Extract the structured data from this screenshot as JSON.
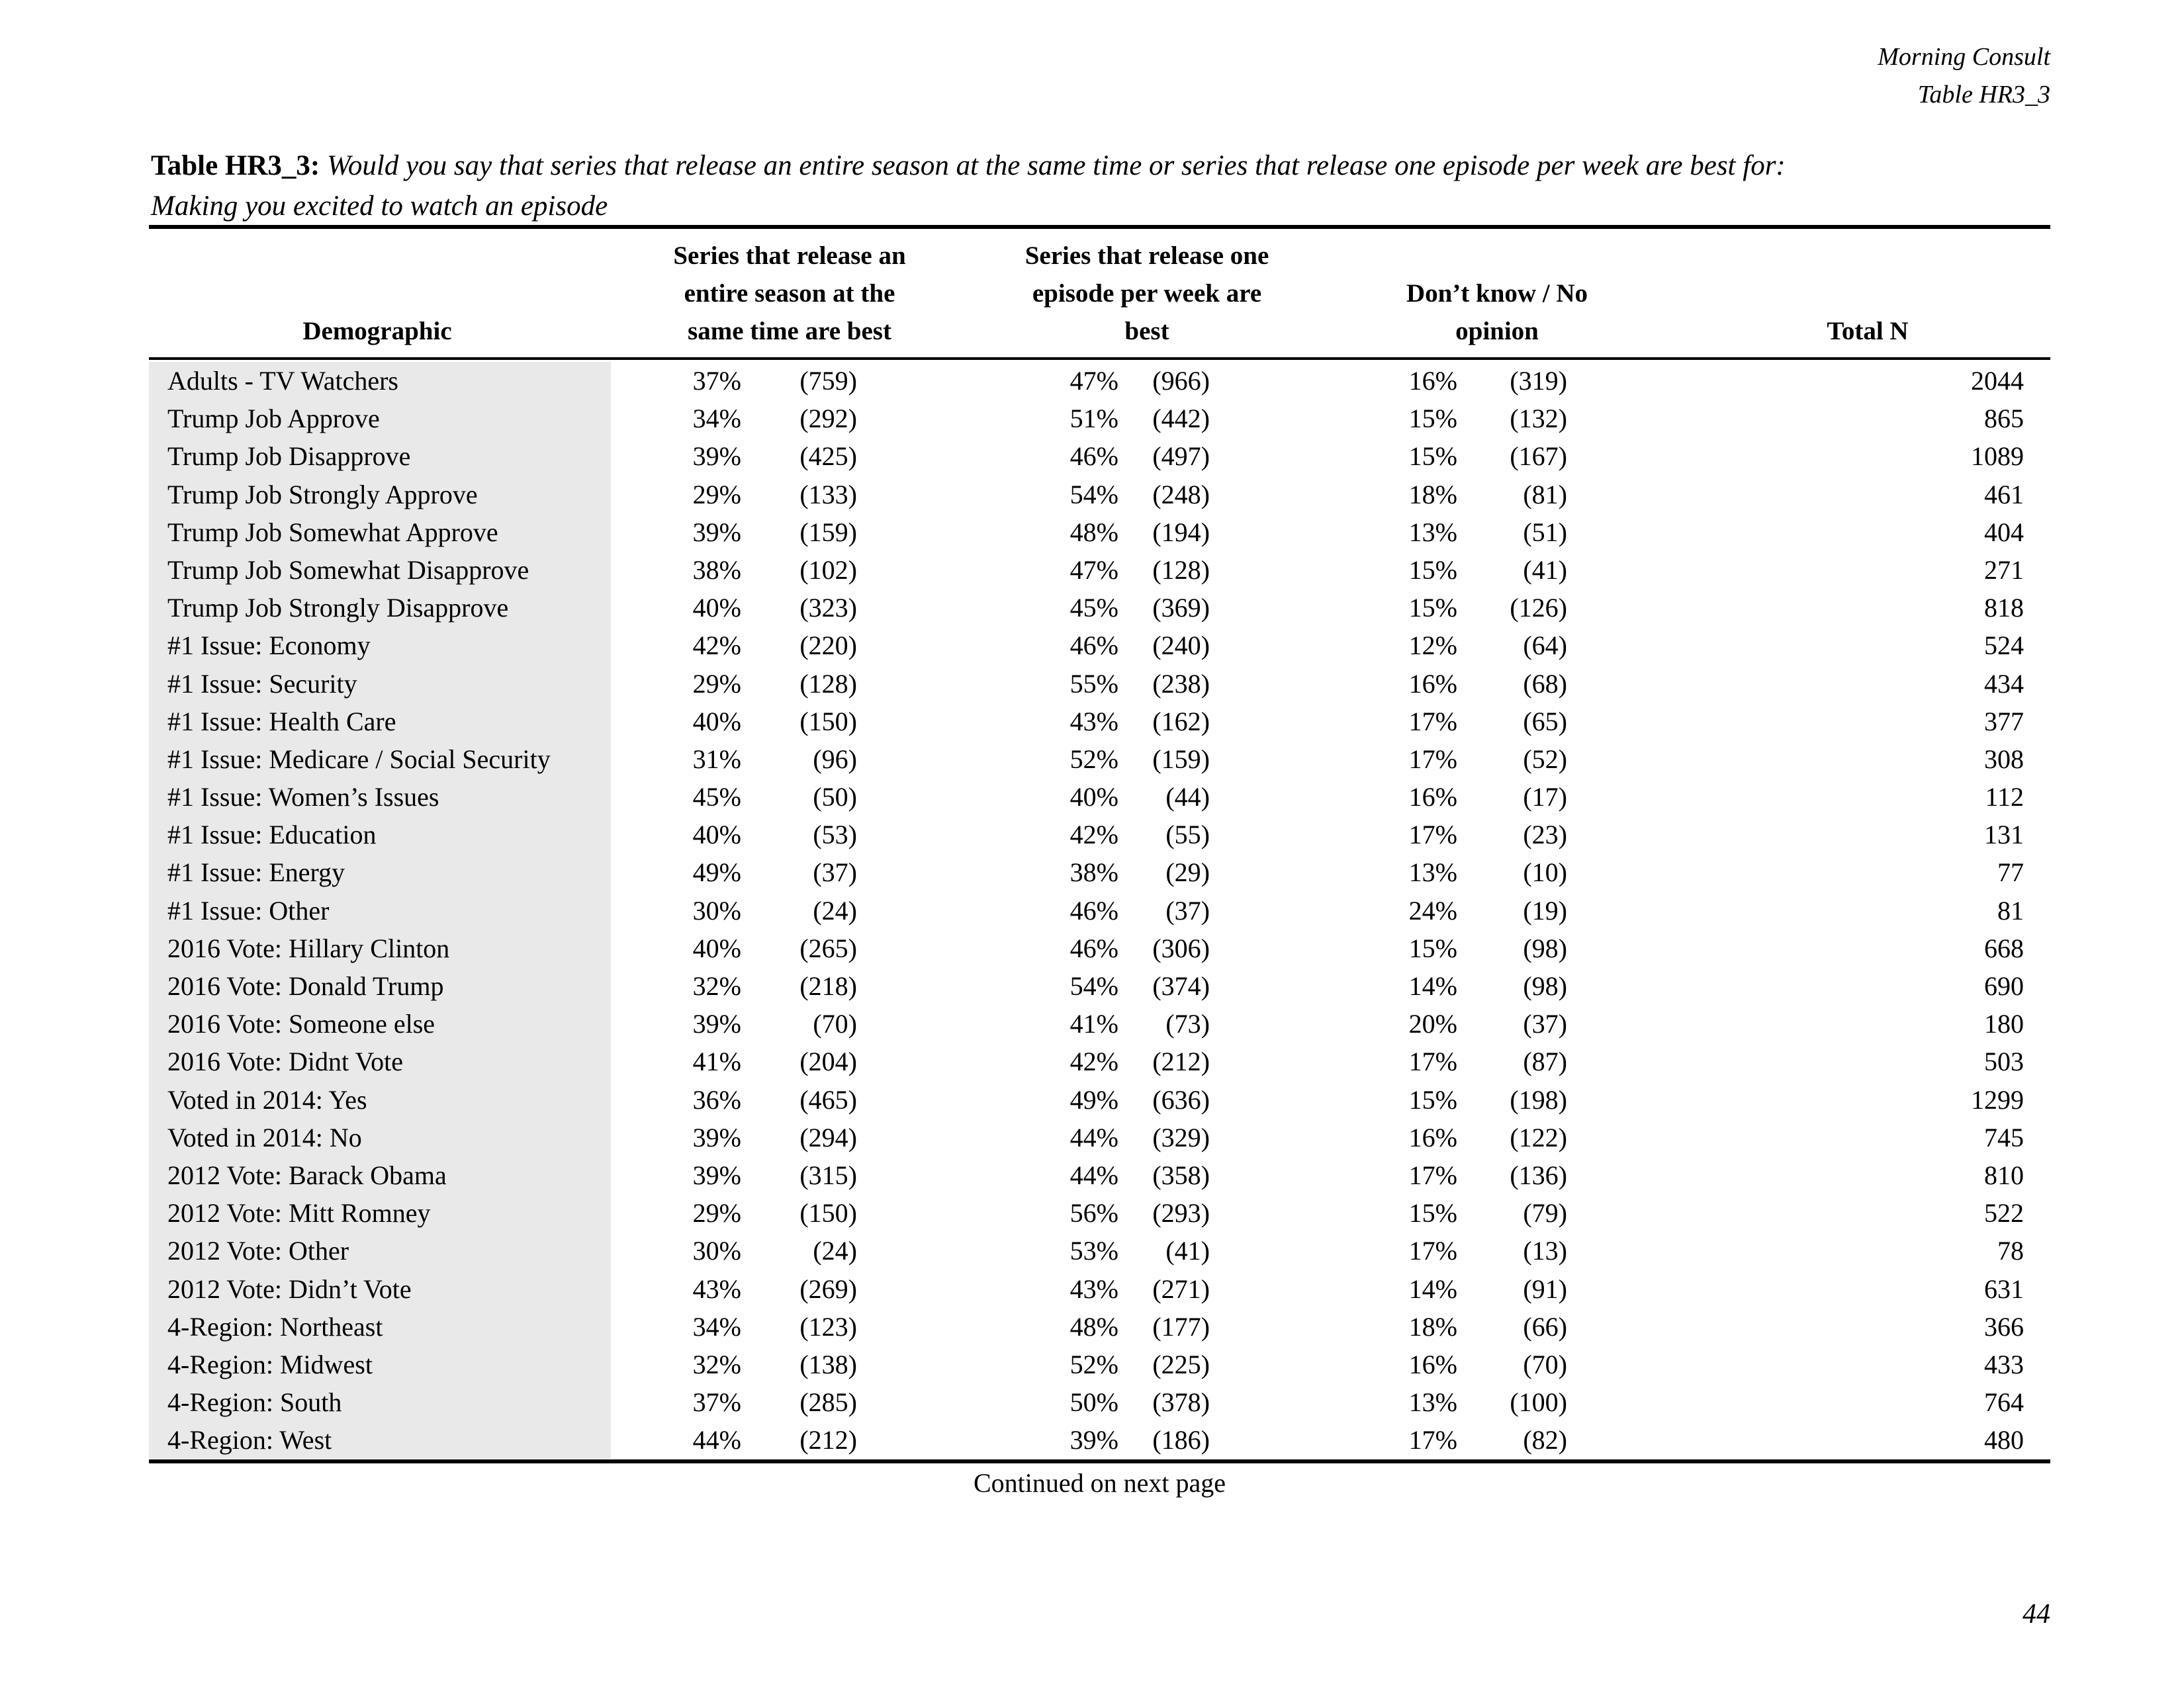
{
  "corner": {
    "line1": "Morning Consult",
    "line2": "Table HR3_3"
  },
  "title": {
    "label": "Table HR3_3:",
    "question_line1": "Would you say that series that release an entire season at the same time or series that release one episode per week are best for:",
    "question_line2": "Making you excited to watch an episode"
  },
  "table": {
    "col_headers": {
      "demographic": "Demographic",
      "group1_lines": [
        "Series that release an",
        "entire season at the",
        "same time are best"
      ],
      "group2_lines": [
        "Series that release one",
        "episode per week are",
        "best"
      ],
      "group3_lines": [
        "Don’t know / No",
        "opinion"
      ],
      "total": "Total N"
    },
    "rows": [
      {
        "label": "Adults - TV Watchers",
        "pct1": "37%",
        "n1": "(759)",
        "pct2": "47%",
        "n2": "(966)",
        "pct3": "16%",
        "n3": "(319)",
        "total": "2044"
      },
      {
        "label": "Trump Job Approve",
        "pct1": "34%",
        "n1": "(292)",
        "pct2": "51%",
        "n2": "(442)",
        "pct3": "15%",
        "n3": "(132)",
        "total": "865"
      },
      {
        "label": "Trump Job Disapprove",
        "pct1": "39%",
        "n1": "(425)",
        "pct2": "46%",
        "n2": "(497)",
        "pct3": "15%",
        "n3": "(167)",
        "total": "1089"
      },
      {
        "label": "Trump Job Strongly Approve",
        "pct1": "29%",
        "n1": "(133)",
        "pct2": "54%",
        "n2": "(248)",
        "pct3": "18%",
        "n3": "(81)",
        "total": "461"
      },
      {
        "label": "Trump Job Somewhat Approve",
        "pct1": "39%",
        "n1": "(159)",
        "pct2": "48%",
        "n2": "(194)",
        "pct3": "13%",
        "n3": "(51)",
        "total": "404"
      },
      {
        "label": "Trump Job Somewhat Disapprove",
        "pct1": "38%",
        "n1": "(102)",
        "pct2": "47%",
        "n2": "(128)",
        "pct3": "15%",
        "n3": "(41)",
        "total": "271"
      },
      {
        "label": "Trump Job Strongly Disapprove",
        "pct1": "40%",
        "n1": "(323)",
        "pct2": "45%",
        "n2": "(369)",
        "pct3": "15%",
        "n3": "(126)",
        "total": "818"
      },
      {
        "label": "#1 Issue: Economy",
        "pct1": "42%",
        "n1": "(220)",
        "pct2": "46%",
        "n2": "(240)",
        "pct3": "12%",
        "n3": "(64)",
        "total": "524"
      },
      {
        "label": "#1 Issue: Security",
        "pct1": "29%",
        "n1": "(128)",
        "pct2": "55%",
        "n2": "(238)",
        "pct3": "16%",
        "n3": "(68)",
        "total": "434"
      },
      {
        "label": "#1 Issue: Health Care",
        "pct1": "40%",
        "n1": "(150)",
        "pct2": "43%",
        "n2": "(162)",
        "pct3": "17%",
        "n3": "(65)",
        "total": "377"
      },
      {
        "label": "#1 Issue: Medicare / Social Security",
        "pct1": "31%",
        "n1": "(96)",
        "pct2": "52%",
        "n2": "(159)",
        "pct3": "17%",
        "n3": "(52)",
        "total": "308"
      },
      {
        "label": "#1 Issue: Women’s Issues",
        "pct1": "45%",
        "n1": "(50)",
        "pct2": "40%",
        "n2": "(44)",
        "pct3": "16%",
        "n3": "(17)",
        "total": "112"
      },
      {
        "label": "#1 Issue: Education",
        "pct1": "40%",
        "n1": "(53)",
        "pct2": "42%",
        "n2": "(55)",
        "pct3": "17%",
        "n3": "(23)",
        "total": "131"
      },
      {
        "label": "#1 Issue: Energy",
        "pct1": "49%",
        "n1": "(37)",
        "pct2": "38%",
        "n2": "(29)",
        "pct3": "13%",
        "n3": "(10)",
        "total": "77"
      },
      {
        "label": "#1 Issue: Other",
        "pct1": "30%",
        "n1": "(24)",
        "pct2": "46%",
        "n2": "(37)",
        "pct3": "24%",
        "n3": "(19)",
        "total": "81"
      },
      {
        "label": "2016 Vote: Hillary Clinton",
        "pct1": "40%",
        "n1": "(265)",
        "pct2": "46%",
        "n2": "(306)",
        "pct3": "15%",
        "n3": "(98)",
        "total": "668"
      },
      {
        "label": "2016 Vote: Donald Trump",
        "pct1": "32%",
        "n1": "(218)",
        "pct2": "54%",
        "n2": "(374)",
        "pct3": "14%",
        "n3": "(98)",
        "total": "690"
      },
      {
        "label": "2016 Vote: Someone else",
        "pct1": "39%",
        "n1": "(70)",
        "pct2": "41%",
        "n2": "(73)",
        "pct3": "20%",
        "n3": "(37)",
        "total": "180"
      },
      {
        "label": "2016 Vote: Didnt Vote",
        "pct1": "41%",
        "n1": "(204)",
        "pct2": "42%",
        "n2": "(212)",
        "pct3": "17%",
        "n3": "(87)",
        "total": "503"
      },
      {
        "label": "Voted in 2014: Yes",
        "pct1": "36%",
        "n1": "(465)",
        "pct2": "49%",
        "n2": "(636)",
        "pct3": "15%",
        "n3": "(198)",
        "total": "1299"
      },
      {
        "label": "Voted in 2014: No",
        "pct1": "39%",
        "n1": "(294)",
        "pct2": "44%",
        "n2": "(329)",
        "pct3": "16%",
        "n3": "(122)",
        "total": "745"
      },
      {
        "label": "2012 Vote: Barack Obama",
        "pct1": "39%",
        "n1": "(315)",
        "pct2": "44%",
        "n2": "(358)",
        "pct3": "17%",
        "n3": "(136)",
        "total": "810"
      },
      {
        "label": "2012 Vote: Mitt Romney",
        "pct1": "29%",
        "n1": "(150)",
        "pct2": "56%",
        "n2": "(293)",
        "pct3": "15%",
        "n3": "(79)",
        "total": "522"
      },
      {
        "label": "2012 Vote: Other",
        "pct1": "30%",
        "n1": "(24)",
        "pct2": "53%",
        "n2": "(41)",
        "pct3": "17%",
        "n3": "(13)",
        "total": "78"
      },
      {
        "label": "2012 Vote: Didn’t Vote",
        "pct1": "43%",
        "n1": "(269)",
        "pct2": "43%",
        "n2": "(271)",
        "pct3": "14%",
        "n3": "(91)",
        "total": "631"
      },
      {
        "label": "4-Region: Northeast",
        "pct1": "34%",
        "n1": "(123)",
        "pct2": "48%",
        "n2": "(177)",
        "pct3": "18%",
        "n3": "(66)",
        "total": "366"
      },
      {
        "label": "4-Region: Midwest",
        "pct1": "32%",
        "n1": "(138)",
        "pct2": "52%",
        "n2": "(225)",
        "pct3": "16%",
        "n3": "(70)",
        "total": "433"
      },
      {
        "label": "4-Region: South",
        "pct1": "37%",
        "n1": "(285)",
        "pct2": "50%",
        "n2": "(378)",
        "pct3": "13%",
        "n3": "(100)",
        "total": "764"
      },
      {
        "label": "4-Region: West",
        "pct1": "44%",
        "n1": "(212)",
        "pct2": "39%",
        "n2": "(186)",
        "pct3": "17%",
        "n3": "(82)",
        "total": "480"
      }
    ]
  },
  "footer": {
    "continued": "Continued on next page",
    "page_number": "44"
  }
}
